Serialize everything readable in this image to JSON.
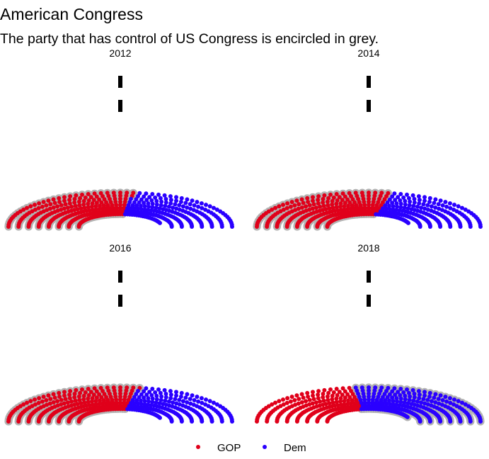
{
  "header": {
    "title": "American Congress",
    "subtitle": "The party that has control of US Congress is encircled in grey."
  },
  "chart_data": {
    "type": "parliament",
    "title": "American Congress",
    "subtitle": "The party that has control of US Congress is encircled in grey.",
    "legend": {
      "position": "bottom",
      "entries": [
        {
          "name": "GOP",
          "color": "#e0001a"
        },
        {
          "name": "Dem",
          "color": "#2a00ff"
        }
      ]
    },
    "highlight_color": "#b3b3b3",
    "colors": {
      "GOP": "#e0001a",
      "Dem": "#2a00ff"
    },
    "panels": [
      {
        "year": "2012",
        "seats": {
          "GOP": 234,
          "Dem": 201
        },
        "control": "GOP"
      },
      {
        "year": "2014",
        "seats": {
          "GOP": 247,
          "Dem": 188
        },
        "control": "GOP"
      },
      {
        "year": "2016",
        "seats": {
          "GOP": 241,
          "Dem": 194
        },
        "control": "GOP"
      },
      {
        "year": "2018",
        "seats": {
          "GOP": 199,
          "Dem": 235
        },
        "control": "Dem"
      }
    ]
  }
}
